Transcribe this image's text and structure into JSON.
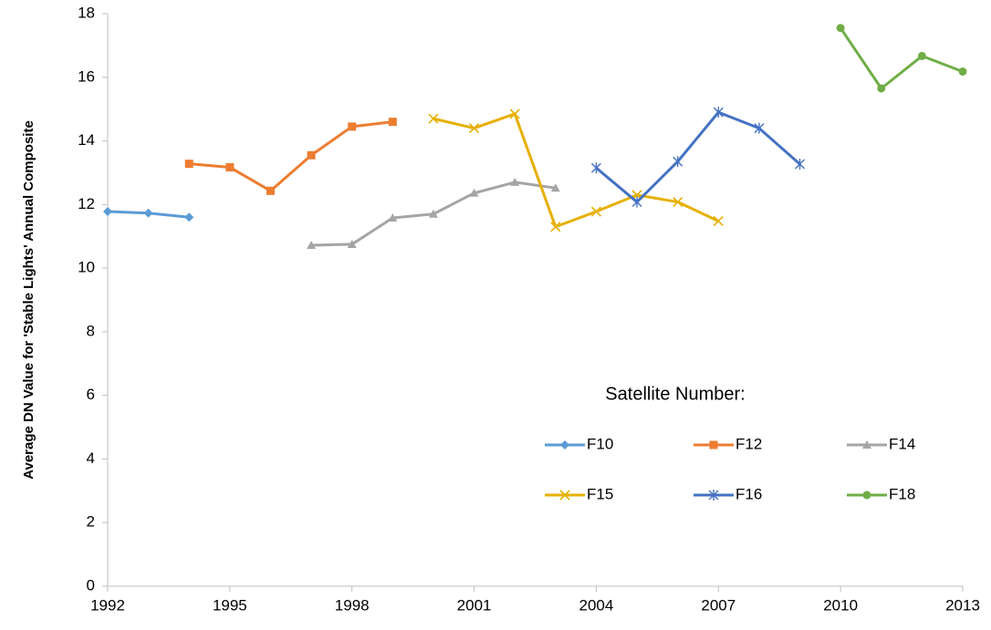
{
  "chart_data": {
    "type": "line",
    "y_label": "Average DN Value for 'Stable Lights' Annual Composite",
    "legend_title": "Satellite Number:",
    "x": [
      1992,
      1993,
      1994,
      1995,
      1996,
      1997,
      1998,
      1999,
      2000,
      2001,
      2002,
      2003,
      2004,
      2005,
      2006,
      2007,
      2008,
      2009,
      2010,
      2011,
      2012,
      2013
    ],
    "series": [
      {
        "name": "F10",
        "color": "#5b9bd5",
        "marker": "diamond",
        "values": [
          11.78,
          11.73,
          11.6,
          null,
          null,
          null,
          null,
          null,
          null,
          null,
          null,
          null,
          null,
          null,
          null,
          null,
          null,
          null,
          null,
          null,
          null,
          null
        ]
      },
      {
        "name": "F12",
        "color": "#ed7d31",
        "marker": "square",
        "values": [
          null,
          null,
          13.28,
          13.17,
          12.43,
          13.55,
          14.45,
          14.6,
          null,
          null,
          null,
          null,
          null,
          null,
          null,
          null,
          null,
          null,
          null,
          null,
          null,
          null
        ]
      },
      {
        "name": "F14",
        "color": "#a5a5a5",
        "marker": "triangle",
        "values": [
          null,
          null,
          null,
          null,
          null,
          10.72,
          10.75,
          11.58,
          11.7,
          12.36,
          12.7,
          12.52,
          null,
          null,
          null,
          null,
          null,
          null,
          null,
          null,
          null,
          null
        ]
      },
      {
        "name": "F15",
        "color": "#e6b000",
        "marker": "x",
        "values": [
          null,
          null,
          null,
          null,
          null,
          null,
          null,
          null,
          14.7,
          14.4,
          14.85,
          11.3,
          11.78,
          12.3,
          12.08,
          11.48,
          null,
          null,
          null,
          null,
          null,
          null
        ]
      },
      {
        "name": "F16",
        "color": "#4472c4",
        "marker": "asterisk",
        "values": [
          null,
          null,
          null,
          null,
          null,
          null,
          null,
          null,
          null,
          null,
          null,
          null,
          13.15,
          12.08,
          13.35,
          14.9,
          14.4,
          13.27,
          null,
          null,
          null,
          null
        ]
      },
      {
        "name": "F18",
        "color": "#70ad47",
        "marker": "circle",
        "values": [
          null,
          null,
          null,
          null,
          null,
          null,
          null,
          null,
          null,
          null,
          null,
          null,
          null,
          null,
          null,
          null,
          null,
          null,
          17.55,
          15.65,
          16.67,
          16.18
        ]
      }
    ],
    "xlim": [
      1992,
      2013
    ],
    "xticks": [
      1992,
      1995,
      1998,
      2001,
      2004,
      2007,
      2010,
      2013
    ],
    "ylim": [
      0,
      18
    ],
    "yticks": [
      0,
      2,
      4,
      6,
      8,
      10,
      12,
      14,
      16,
      18
    ],
    "grid": false
  }
}
